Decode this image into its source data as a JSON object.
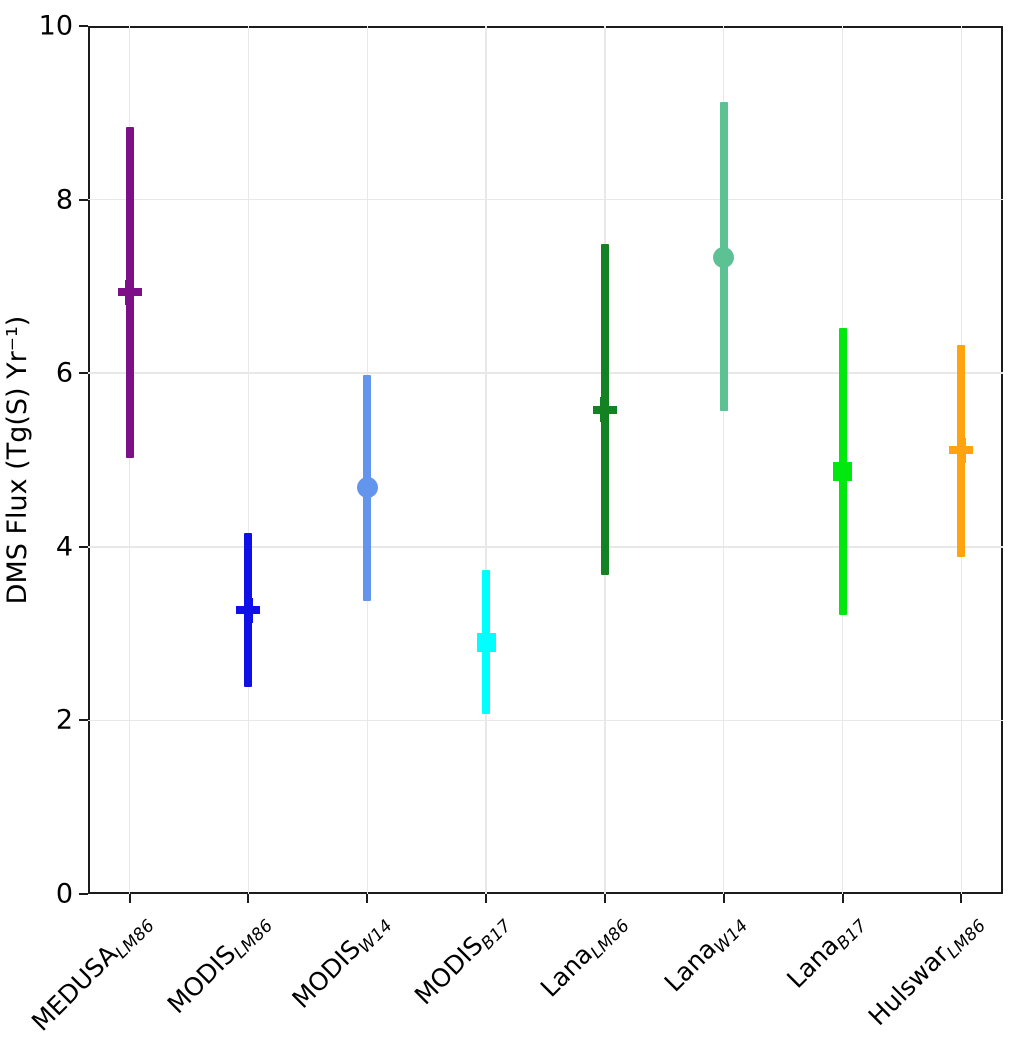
{
  "chart_data": {
    "type": "scatter",
    "subtype": "point-with-error-bars",
    "title": "",
    "xlabel": "",
    "ylabel": "DMS Flux (Tg(S) Yr⁻¹)",
    "ylim": [
      0,
      10
    ],
    "yticks": [
      0,
      2,
      4,
      6,
      8,
      10
    ],
    "ytick_labels": [
      "0",
      "2",
      "4",
      "6",
      "8",
      "10"
    ],
    "grid": true,
    "legend": "none",
    "categories": [
      "MEDUSA_LM86",
      "MODIS_LM86",
      "MODIS_W14",
      "MODIS_B17",
      "Lana_LM86",
      "Lana_W14",
      "Lana_B17",
      "Hulswar_LM86"
    ],
    "series": [
      {
        "label_base": "MEDUSA",
        "label_sub": "LM86",
        "marker": "plus",
        "color": "#7D1089",
        "value": 6.93,
        "lo": 5.02,
        "hi": 8.84
      },
      {
        "label_base": "MODIS",
        "label_sub": "LM86",
        "marker": "plus",
        "color": "#0F0FE8",
        "value": 3.27,
        "lo": 2.38,
        "hi": 4.16
      },
      {
        "label_base": "MODIS",
        "label_sub": "W14",
        "marker": "circle",
        "color": "#6495ED",
        "value": 4.68,
        "lo": 3.38,
        "hi": 5.98
      },
      {
        "label_base": "MODIS",
        "label_sub": "B17",
        "marker": "square",
        "color": "#00FFFF",
        "value": 2.9,
        "lo": 2.07,
        "hi": 3.73
      },
      {
        "label_base": "Lana",
        "label_sub": "LM86",
        "marker": "plus",
        "color": "#148223",
        "value": 5.58,
        "lo": 3.67,
        "hi": 7.49
      },
      {
        "label_base": "Lana",
        "label_sub": "W14",
        "marker": "circle",
        "color": "#5CC294",
        "value": 7.33,
        "lo": 5.57,
        "hi": 9.12
      },
      {
        "label_base": "Lana",
        "label_sub": "B17",
        "marker": "square",
        "color": "#00E80D",
        "value": 4.87,
        "lo": 3.21,
        "hi": 6.52
      },
      {
        "label_base": "Hulswar",
        "label_sub": "LM86",
        "marker": "plus",
        "color": "#FFA40E",
        "value": 5.11,
        "lo": 3.88,
        "hi": 6.32
      }
    ],
    "style": {
      "grid_color": "#e8e8e8",
      "spine_color": "#1c1c1c",
      "text_color": "#000000",
      "background": "#ffffff"
    }
  }
}
